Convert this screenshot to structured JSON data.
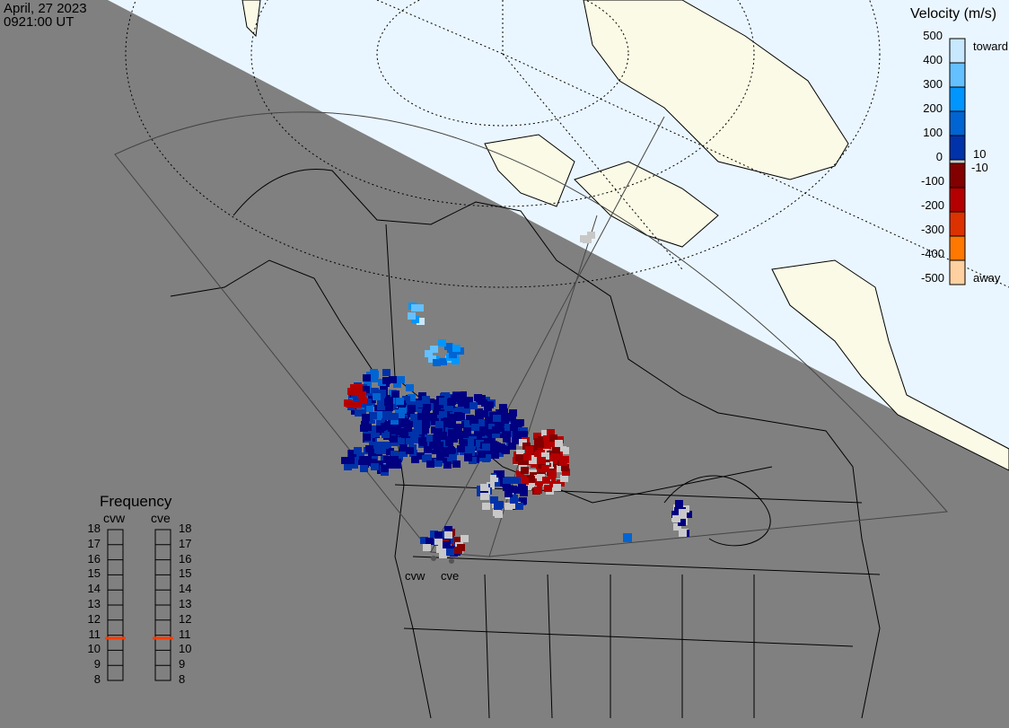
{
  "header": {
    "date": "April, 27 2023",
    "time": "0921:00 UT"
  },
  "velocity_scale": {
    "title": "Velocity (m/s)",
    "ticks": [
      "500",
      "400",
      "300",
      "200",
      "100",
      "0",
      "-100",
      "-200",
      "-300",
      "-400",
      "-500"
    ],
    "near_zero_labels": [
      "10",
      "-10"
    ],
    "toward_label": "toward",
    "away_label": "away",
    "colors": [
      "#c8e8ff",
      "#64c0ff",
      "#0096ff",
      "#0064d2",
      "#0032aa",
      "#000080",
      "#c8c8c8",
      "#820000",
      "#b40000",
      "#dc3200",
      "#ff7800",
      "#ffd0a0"
    ]
  },
  "frequency": {
    "title": "Frequency",
    "radars": [
      {
        "name": "cvw",
        "freq_mhz": 10.8
      },
      {
        "name": "cve",
        "freq_mhz": 10.8
      }
    ],
    "ticks": [
      "18",
      "17",
      "16",
      "15",
      "14",
      "13",
      "12",
      "11",
      "10",
      "9",
      "8"
    ],
    "marker_color": "#ff3c00"
  },
  "map": {
    "radar_labels": [
      "cvw",
      "cve"
    ],
    "night_color": "#808080",
    "day_ocean_color": "#eaf6ff",
    "day_land_color": "#fafae6"
  }
}
